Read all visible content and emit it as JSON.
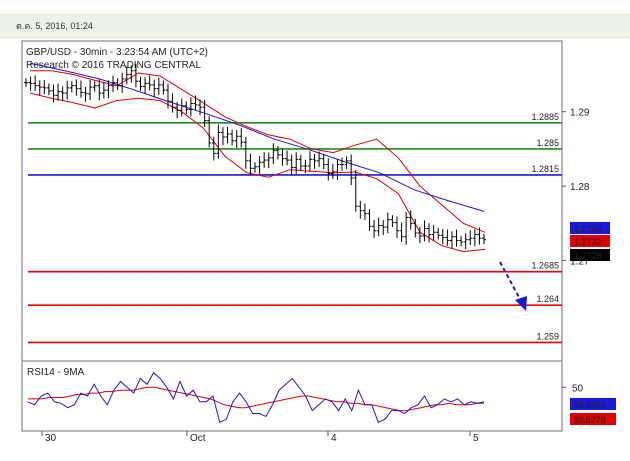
{
  "header": {
    "datetime": "ต.ค. 5, 2016, 01:24"
  },
  "chart_data": [
    {
      "type": "candlestick",
      "title": "GBP/USD - 30min - 3:23:54 AM (UTC+2)",
      "subtitle": "Research © 2016 TRADING CENTRAL",
      "ylim": [
        1.2565,
        1.2995
      ],
      "y_ticks": [
        {
          "value": 1.29,
          "label": "1.29"
        },
        {
          "value": 1.28,
          "label": "1.28"
        },
        {
          "value": 1.27,
          "label": "1.27"
        }
      ],
      "x_ticks": [
        "30",
        "Oct",
        "4",
        "5"
      ],
      "levels": [
        {
          "value": 1.2885,
          "label": "1.2885",
          "color": "#1e8c1e"
        },
        {
          "value": 1.285,
          "label": "1.285",
          "color": "#1e8c1e"
        },
        {
          "value": 1.2815,
          "label": "1.2815",
          "color": "#1a1ad6"
        },
        {
          "value": 1.2685,
          "label": "1.2685",
          "color": "#e00000"
        },
        {
          "value": 1.264,
          "label": "1.264",
          "color": "#e00000"
        },
        {
          "value": 1.259,
          "label": "1.259",
          "color": "#e00000"
        }
      ],
      "price_tags": [
        {
          "value": 1.2766,
          "label": "1.2766",
          "color": "#1a1ad6"
        },
        {
          "value": 1.2732,
          "label": "1.2732",
          "color": "#e00000"
        },
        {
          "value": 1.2728,
          "label": "1.2728",
          "color": "#000000"
        }
      ],
      "series": [
        {
          "name": "price",
          "color": "#000000",
          "values": [
            1.2939,
            1.2938,
            1.2935,
            1.2933,
            1.2932,
            1.2928,
            1.2922,
            1.2927,
            1.2925,
            1.2932,
            1.2935,
            1.2931,
            1.2926,
            1.2924,
            1.2933,
            1.2935,
            1.2925,
            1.2929,
            1.2935,
            1.2939,
            1.2935,
            1.2944,
            1.295,
            1.2955,
            1.2941,
            1.2934,
            1.2938,
            1.2936,
            1.2931,
            1.2936,
            1.2929,
            1.2914,
            1.2906,
            1.2902,
            1.2908,
            1.2903,
            1.2911,
            1.2909,
            1.2906,
            1.2888,
            1.2858,
            1.2844,
            1.2872,
            1.2866,
            1.287,
            1.2861,
            1.2867,
            1.2859,
            1.2834,
            1.2824,
            1.2826,
            1.2832,
            1.2835,
            1.2838,
            1.2848,
            1.2842,
            1.2837,
            1.2835,
            1.2825,
            1.2836,
            1.2827,
            1.2827,
            1.2836,
            1.2834,
            1.2837,
            1.2829,
            1.2817,
            1.2819,
            1.2829,
            1.2829,
            1.2834,
            1.2811,
            1.2773,
            1.2767,
            1.2763,
            1.2746,
            1.274,
            1.2747,
            1.2745,
            1.2755,
            1.2751,
            1.274,
            1.2732,
            1.2758,
            1.275,
            1.2737,
            1.2733,
            1.2743,
            1.2735,
            1.2738,
            1.2734,
            1.2731,
            1.2727,
            1.2732,
            1.2727,
            1.2725,
            1.2728,
            1.273,
            1.2735,
            1.273,
            1.2728
          ]
        },
        {
          "name": "moving-average",
          "color": "#1a1ad6",
          "values": [
            1.2965,
            1.2955,
            1.2944,
            1.2929,
            1.2913,
            1.2898,
            1.2882,
            1.2863,
            1.2849,
            1.2833,
            1.2818,
            1.2795,
            1.278,
            1.2766
          ]
        },
        {
          "name": "band-upper",
          "color": "#e00000",
          "values": [
            1.2955,
            1.2955,
            1.295,
            1.2942,
            1.2935,
            1.2952,
            1.2948,
            1.293,
            1.2912,
            1.2893,
            1.288,
            1.2869,
            1.2863,
            1.285,
            1.2845,
            1.2855,
            1.2863,
            1.2838,
            1.28,
            1.2775,
            1.275,
            1.2738
          ]
        },
        {
          "name": "band-lower",
          "color": "#e00000",
          "values": [
            1.2925,
            1.2918,
            1.2912,
            1.2905,
            1.2915,
            1.2918,
            1.2915,
            1.29,
            1.2878,
            1.284,
            1.2818,
            1.2812,
            1.2822,
            1.282,
            1.2818,
            1.2819,
            1.281,
            1.279,
            1.2738,
            1.272,
            1.2712,
            1.2715
          ]
        }
      ]
    },
    {
      "type": "line",
      "title": "RSI14 - 9MA",
      "y_ticks": [
        {
          "value": 50,
          "label": "50"
        }
      ],
      "price_tags": [
        {
          "value": 39.6504,
          "label": "39.6504",
          "color": "#1a1ad6"
        },
        {
          "value": 38.5278,
          "label": "38.5278",
          "color": "#e00000"
        }
      ],
      "series": [
        {
          "name": "rsi",
          "color": "#1a1ad6",
          "values": [
            40,
            38,
            44,
            46,
            40,
            39,
            36,
            38,
            46,
            44,
            52,
            44,
            38,
            48,
            54,
            50,
            46,
            56,
            52,
            60,
            56,
            50,
            42,
            54,
            44,
            48,
            40,
            40,
            44,
            26,
            28,
            40,
            46,
            40,
            32,
            32,
            30,
            38,
            48,
            52,
            56,
            50,
            44,
            34,
            38,
            42,
            40,
            34,
            42,
            34,
            48,
            38,
            38,
            26,
            28,
            34,
            34,
            32,
            36,
            38,
            44,
            36,
            38,
            42,
            40,
            42,
            38,
            40,
            39,
            40
          ]
        },
        {
          "name": "rsi-ma",
          "color": "#e00000",
          "values": [
            42,
            42,
            42,
            43,
            43,
            43,
            44,
            45,
            45,
            46,
            46,
            47,
            47,
            48,
            48,
            48,
            49,
            50,
            50,
            49,
            48,
            47,
            46,
            45,
            44,
            43,
            42,
            40,
            38,
            37,
            36,
            36,
            37,
            38,
            39,
            40,
            41,
            42,
            43,
            44,
            44,
            43,
            42,
            41,
            40,
            40,
            39,
            39,
            38,
            38,
            37,
            36,
            35,
            34,
            34,
            35,
            36,
            37,
            38,
            38,
            39,
            38,
            38,
            38,
            39,
            39
          ]
        }
      ]
    }
  ]
}
